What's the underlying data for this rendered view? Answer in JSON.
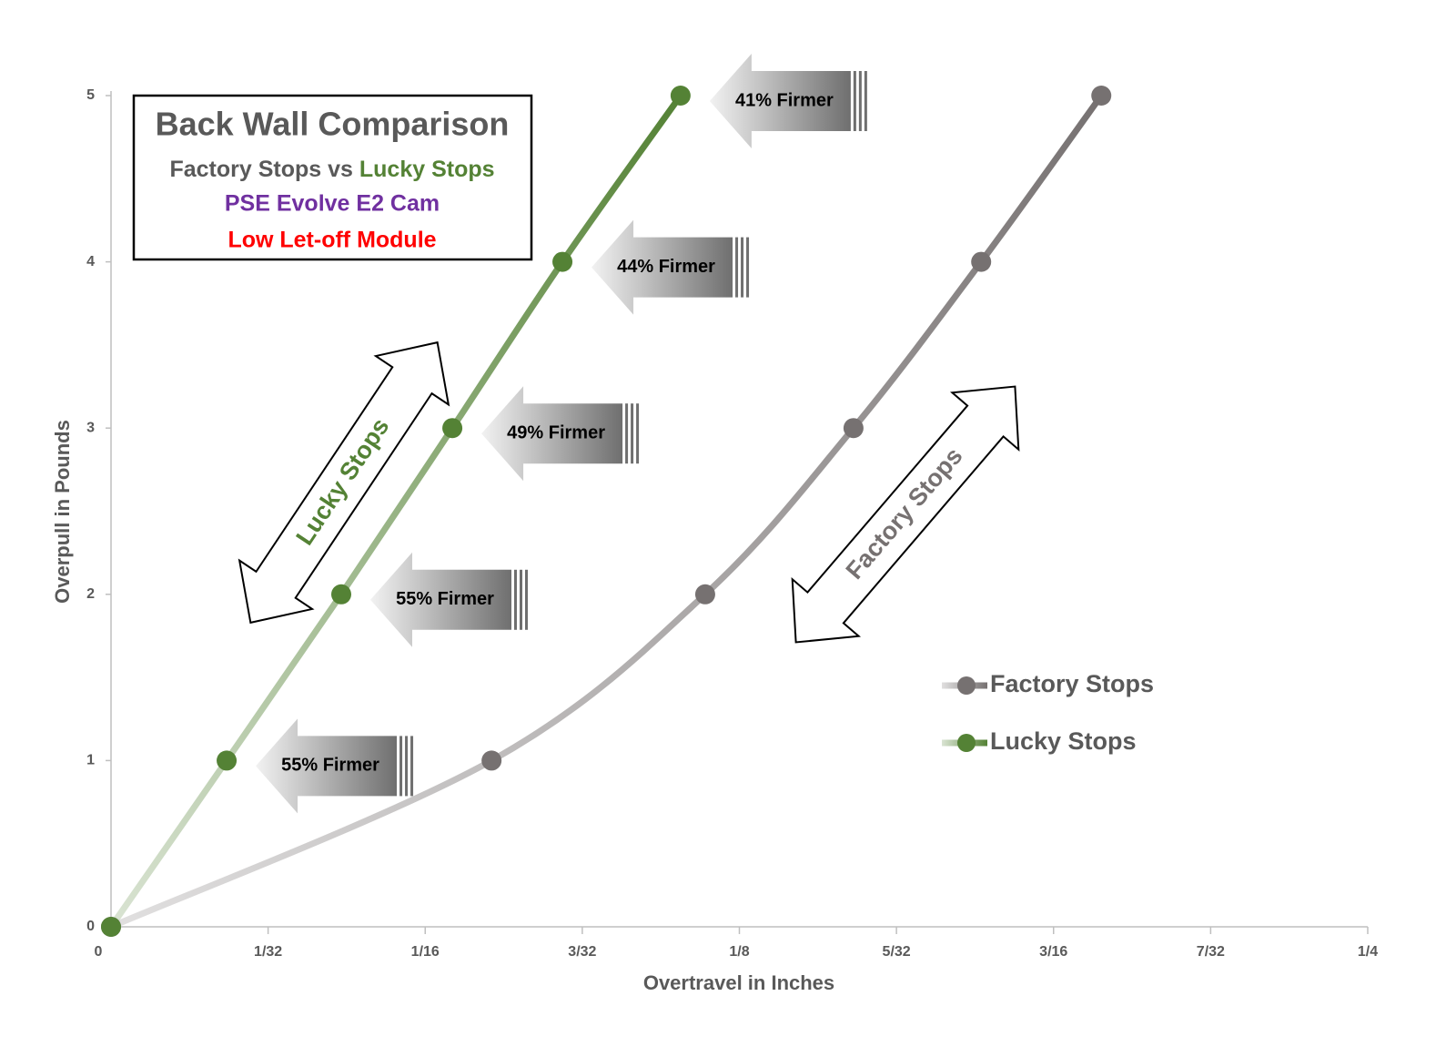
{
  "chart_data": {
    "type": "line",
    "title": "Back Wall Comparison",
    "subtitle_parts": [
      "Factory Stops",
      "vs",
      "Lucky Stops"
    ],
    "notes": [
      "PSE Evolve E2 Cam",
      "Low Let-off Module"
    ],
    "note_colors": [
      "#7030a0",
      "#ff0000"
    ],
    "x_label": "Overtravel in Inches",
    "y_label": "Overpull in Pounds",
    "xlim": [
      0,
      0.25
    ],
    "ylim": [
      0,
      5
    ],
    "xticks": [
      0,
      {
        "value": 0.03125,
        "label": "1/32"
      },
      {
        "value": 0.0625,
        "label": "1/16"
      },
      {
        "value": 0.09375,
        "label": "3/32"
      },
      {
        "value": 0.125,
        "label": "1/8"
      },
      {
        "value": 0.15625,
        "label": "5/32"
      },
      {
        "value": 0.1875,
        "label": "3/16"
      },
      {
        "value": 0.21875,
        "label": "7/32"
      },
      {
        "value": 0.25,
        "label": "1/4"
      }
    ],
    "yticks": [
      0,
      1,
      2,
      3,
      4,
      5
    ],
    "smooth": true,
    "series": [
      {
        "name": "Factory Stops",
        "color": "#767171",
        "x": [
          0,
          0.0757,
          0.1182,
          0.1477,
          0.1731,
          0.197
        ],
        "values": [
          0,
          1,
          2,
          3,
          4,
          5
        ]
      },
      {
        "name": "Lucky Stops",
        "color": "#548235",
        "x": [
          0,
          0.023,
          0.0458,
          0.0679,
          0.0898,
          0.1133
        ],
        "values": [
          0,
          1,
          2,
          3,
          4,
          5
        ]
      }
    ],
    "annotations": [
      "55% Firmer",
      "55% Firmer",
      "49% Firmer",
      "44% Firmer",
      "41% Firmer"
    ]
  }
}
